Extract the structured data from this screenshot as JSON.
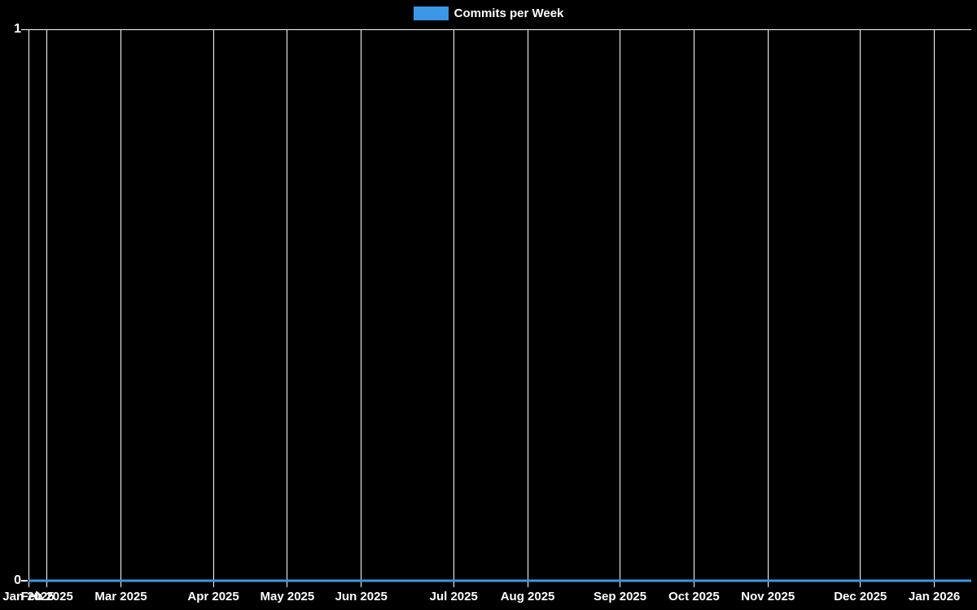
{
  "legend": {
    "items": [
      {
        "label": "Commits per Week",
        "color": "#3a97e8"
      }
    ]
  },
  "chart_data": {
    "type": "line",
    "title": "Commits per Week",
    "legend_position": "top-center",
    "background": "#000000",
    "text_color": "#ffffff",
    "grid": {
      "vertical": true,
      "horizontal": false,
      "color": "#ffffff"
    },
    "ylim": [
      0,
      1
    ],
    "y_ticks": [
      {
        "label": "0",
        "value": 0
      },
      {
        "label": "1",
        "value": 1
      }
    ],
    "x_range_label": "Jan 2025 to Jan 2026",
    "interval": "weekly",
    "n_points": 52,
    "x_ticks": [
      {
        "label": "Jan 2025",
        "week_index": 0
      },
      {
        "label": "Feb 2025",
        "week_index": 1
      },
      {
        "label": "Mar 2025",
        "week_index": 5
      },
      {
        "label": "Apr 2025",
        "week_index": 10
      },
      {
        "label": "May 2025",
        "week_index": 14
      },
      {
        "label": "Jun 2025",
        "week_index": 18
      },
      {
        "label": "Jul 2025",
        "week_index": 23
      },
      {
        "label": "Aug 2025",
        "week_index": 27
      },
      {
        "label": "Sep 2025",
        "week_index": 32
      },
      {
        "label": "Oct 2025",
        "week_index": 36
      },
      {
        "label": "Nov 2025",
        "week_index": 40
      },
      {
        "label": "Dec 2025",
        "week_index": 45
      },
      {
        "label": "Jan 2026",
        "week_index": 49
      }
    ],
    "series": [
      {
        "name": "Commits per Week",
        "color": "#3a97e8",
        "line_width": 3,
        "values": [
          0,
          0,
          0,
          0,
          0,
          0,
          0,
          0,
          0,
          0,
          0,
          0,
          0,
          0,
          0,
          0,
          0,
          0,
          0,
          0,
          0,
          0,
          0,
          0,
          0,
          0,
          0,
          0,
          0,
          0,
          0,
          0,
          0,
          0,
          0,
          0,
          0,
          0,
          0,
          0,
          0,
          0,
          0,
          0,
          0,
          0,
          0,
          0,
          0,
          0,
          0,
          0
        ]
      }
    ]
  }
}
